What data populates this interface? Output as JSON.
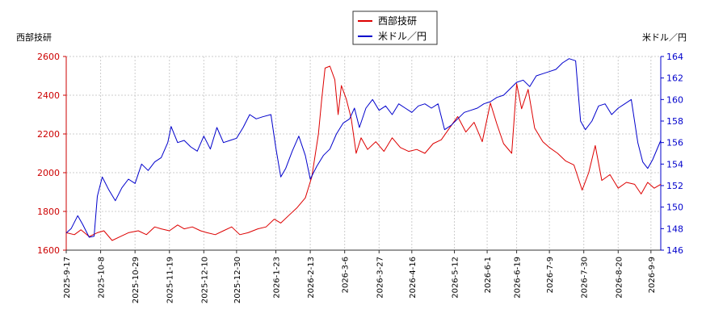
{
  "chart_data": {
    "type": "line",
    "left_axis_label": "西部技研",
    "right_axis_label": "米ドル／円",
    "legend": [
      "西部技研",
      "米ドル／円"
    ],
    "legend_position": "top-center",
    "grid": true,
    "y_left": {
      "min": 1600,
      "max": 2600,
      "ticks": [
        1600,
        1800,
        2000,
        2200,
        2400,
        2600
      ]
    },
    "y_right": {
      "min": 146,
      "max": 164,
      "ticks": [
        146,
        148,
        150,
        152,
        154,
        156,
        158,
        160,
        162,
        164
      ]
    },
    "x_range": [
      "2025-09-17",
      "2026-09-15"
    ],
    "x_ticks": [
      "2025-9-17",
      "2025-10-8",
      "2025-10-29",
      "2025-11-19",
      "2025-12-10",
      "2025-12-30",
      "2026-1-23",
      "2026-2-13",
      "2026-3-6",
      "2026-3-27",
      "2026-4-16",
      "2026-5-12",
      "2026-6-1",
      "2026-6-19",
      "2026-7-9",
      "2026-7-30",
      "2026-8-20",
      "2026-9-9"
    ],
    "series": [
      {
        "name": "西部技研",
        "axis": "left",
        "color": "#dd0000",
        "points": [
          [
            "2025-09-17",
            1690
          ],
          [
            "2025-09-22",
            1680
          ],
          [
            "2025-09-26",
            1705
          ],
          [
            "2025-10-01",
            1670
          ],
          [
            "2025-10-06",
            1690
          ],
          [
            "2025-10-10",
            1700
          ],
          [
            "2025-10-15",
            1650
          ],
          [
            "2025-10-20",
            1670
          ],
          [
            "2025-10-25",
            1690
          ],
          [
            "2025-10-31",
            1700
          ],
          [
            "2025-11-05",
            1680
          ],
          [
            "2025-11-10",
            1720
          ],
          [
            "2025-11-14",
            1710
          ],
          [
            "2025-11-19",
            1700
          ],
          [
            "2025-11-24",
            1730
          ],
          [
            "2025-11-28",
            1710
          ],
          [
            "2025-12-03",
            1720
          ],
          [
            "2025-12-08",
            1700
          ],
          [
            "2025-12-12",
            1690
          ],
          [
            "2025-12-17",
            1680
          ],
          [
            "2025-12-22",
            1700
          ],
          [
            "2025-12-27",
            1720
          ],
          [
            "2026-01-01",
            1680
          ],
          [
            "2026-01-06",
            1690
          ],
          [
            "2026-01-12",
            1710
          ],
          [
            "2026-01-17",
            1720
          ],
          [
            "2026-01-22",
            1760
          ],
          [
            "2026-01-26",
            1740
          ],
          [
            "2026-01-31",
            1780
          ],
          [
            "2026-02-05",
            1820
          ],
          [
            "2026-02-10",
            1870
          ],
          [
            "2026-02-14",
            1980
          ],
          [
            "2026-02-18",
            2200
          ],
          [
            "2026-02-20",
            2380
          ],
          [
            "2026-02-22",
            2540
          ],
          [
            "2026-02-25",
            2550
          ],
          [
            "2026-02-28",
            2480
          ],
          [
            "2026-03-02",
            2300
          ],
          [
            "2026-03-04",
            2450
          ],
          [
            "2026-03-07",
            2380
          ],
          [
            "2026-03-10",
            2280
          ],
          [
            "2026-03-13",
            2100
          ],
          [
            "2026-03-16",
            2180
          ],
          [
            "2026-03-20",
            2120
          ],
          [
            "2026-03-25",
            2160
          ],
          [
            "2026-03-30",
            2110
          ],
          [
            "2026-04-04",
            2180
          ],
          [
            "2026-04-09",
            2130
          ],
          [
            "2026-04-14",
            2110
          ],
          [
            "2026-04-19",
            2120
          ],
          [
            "2026-04-24",
            2100
          ],
          [
            "2026-04-29",
            2150
          ],
          [
            "2026-05-04",
            2170
          ],
          [
            "2026-05-09",
            2230
          ],
          [
            "2026-05-14",
            2290
          ],
          [
            "2026-05-19",
            2210
          ],
          [
            "2026-05-24",
            2260
          ],
          [
            "2026-05-29",
            2160
          ],
          [
            "2026-06-03",
            2360
          ],
          [
            "2026-06-07",
            2250
          ],
          [
            "2026-06-11",
            2150
          ],
          [
            "2026-06-16",
            2100
          ],
          [
            "2026-06-19",
            2460
          ],
          [
            "2026-06-22",
            2330
          ],
          [
            "2026-06-26",
            2430
          ],
          [
            "2026-06-30",
            2230
          ],
          [
            "2026-07-05",
            2160
          ],
          [
            "2026-07-09",
            2130
          ],
          [
            "2026-07-14",
            2100
          ],
          [
            "2026-07-19",
            2060
          ],
          [
            "2026-07-24",
            2040
          ],
          [
            "2026-07-29",
            1910
          ],
          [
            "2026-08-02",
            2000
          ],
          [
            "2026-08-06",
            2140
          ],
          [
            "2026-08-10",
            1960
          ],
          [
            "2026-08-15",
            1990
          ],
          [
            "2026-08-20",
            1920
          ],
          [
            "2026-08-25",
            1950
          ],
          [
            "2026-08-30",
            1940
          ],
          [
            "2026-09-03",
            1890
          ],
          [
            "2026-09-07",
            1950
          ],
          [
            "2026-09-11",
            1920
          ],
          [
            "2026-09-15",
            1940
          ]
        ]
      },
      {
        "name": "米ドル／円",
        "axis": "right",
        "color": "#0000cc",
        "points": [
          [
            "2025-09-17",
            147.6
          ],
          [
            "2025-09-20",
            148.0
          ],
          [
            "2025-09-24",
            149.2
          ],
          [
            "2025-09-27",
            148.4
          ],
          [
            "2025-10-01",
            147.2
          ],
          [
            "2025-10-04",
            147.3
          ],
          [
            "2025-10-06",
            151.0
          ],
          [
            "2025-10-09",
            152.8
          ],
          [
            "2025-10-13",
            151.6
          ],
          [
            "2025-10-17",
            150.6
          ],
          [
            "2025-10-21",
            151.8
          ],
          [
            "2025-10-25",
            152.6
          ],
          [
            "2025-10-29",
            152.2
          ],
          [
            "2025-11-02",
            154.0
          ],
          [
            "2025-11-06",
            153.4
          ],
          [
            "2025-11-10",
            154.2
          ],
          [
            "2025-11-14",
            154.6
          ],
          [
            "2025-11-18",
            156.0
          ],
          [
            "2025-11-20",
            157.5
          ],
          [
            "2025-11-24",
            156.0
          ],
          [
            "2025-11-28",
            156.2
          ],
          [
            "2025-12-02",
            155.6
          ],
          [
            "2025-12-06",
            155.2
          ],
          [
            "2025-12-10",
            156.6
          ],
          [
            "2025-12-14",
            155.4
          ],
          [
            "2025-12-18",
            157.4
          ],
          [
            "2025-12-22",
            156.0
          ],
          [
            "2025-12-26",
            156.2
          ],
          [
            "2025-12-30",
            156.4
          ],
          [
            "2026-01-03",
            157.4
          ],
          [
            "2026-01-07",
            158.6
          ],
          [
            "2026-01-11",
            158.2
          ],
          [
            "2026-01-15",
            158.4
          ],
          [
            "2026-01-20",
            158.6
          ],
          [
            "2026-01-23",
            155.5
          ],
          [
            "2026-01-26",
            152.8
          ],
          [
            "2026-01-29",
            153.6
          ],
          [
            "2026-02-02",
            155.2
          ],
          [
            "2026-02-06",
            156.6
          ],
          [
            "2026-02-10",
            154.8
          ],
          [
            "2026-02-13",
            152.6
          ],
          [
            "2026-02-17",
            153.8
          ],
          [
            "2026-02-21",
            154.8
          ],
          [
            "2026-02-25",
            155.4
          ],
          [
            "2026-03-01",
            156.8
          ],
          [
            "2026-03-05",
            157.8
          ],
          [
            "2026-03-09",
            158.2
          ],
          [
            "2026-03-12",
            159.2
          ],
          [
            "2026-03-15",
            157.4
          ],
          [
            "2026-03-19",
            159.2
          ],
          [
            "2026-03-23",
            160.0
          ],
          [
            "2026-03-27",
            159.0
          ],
          [
            "2026-03-31",
            159.4
          ],
          [
            "2026-04-04",
            158.6
          ],
          [
            "2026-04-08",
            159.6
          ],
          [
            "2026-04-12",
            159.2
          ],
          [
            "2026-04-16",
            158.8
          ],
          [
            "2026-04-20",
            159.4
          ],
          [
            "2026-04-24",
            159.6
          ],
          [
            "2026-04-28",
            159.2
          ],
          [
            "2026-05-02",
            159.6
          ],
          [
            "2026-05-06",
            157.2
          ],
          [
            "2026-05-10",
            157.6
          ],
          [
            "2026-05-14",
            158.2
          ],
          [
            "2026-05-18",
            158.8
          ],
          [
            "2026-05-22",
            159.0
          ],
          [
            "2026-05-26",
            159.2
          ],
          [
            "2026-05-30",
            159.6
          ],
          [
            "2026-06-03",
            159.8
          ],
          [
            "2026-06-07",
            160.2
          ],
          [
            "2026-06-11",
            160.4
          ],
          [
            "2026-06-15",
            161.0
          ],
          [
            "2026-06-19",
            161.6
          ],
          [
            "2026-06-23",
            161.8
          ],
          [
            "2026-06-27",
            161.2
          ],
          [
            "2026-07-01",
            162.2
          ],
          [
            "2026-07-05",
            162.4
          ],
          [
            "2026-07-09",
            162.6
          ],
          [
            "2026-07-13",
            162.8
          ],
          [
            "2026-07-17",
            163.4
          ],
          [
            "2026-07-21",
            163.8
          ],
          [
            "2026-07-25",
            163.6
          ],
          [
            "2026-07-28",
            158.0
          ],
          [
            "2026-07-31",
            157.2
          ],
          [
            "2026-08-04",
            158.0
          ],
          [
            "2026-08-08",
            159.4
          ],
          [
            "2026-08-12",
            159.6
          ],
          [
            "2026-08-16",
            158.6
          ],
          [
            "2026-08-20",
            159.2
          ],
          [
            "2026-08-24",
            159.6
          ],
          [
            "2026-08-28",
            160.0
          ],
          [
            "2026-09-01",
            156.0
          ],
          [
            "2026-09-04",
            154.2
          ],
          [
            "2026-09-07",
            153.6
          ],
          [
            "2026-09-10",
            154.4
          ],
          [
            "2026-09-15",
            156.2
          ]
        ]
      }
    ]
  }
}
